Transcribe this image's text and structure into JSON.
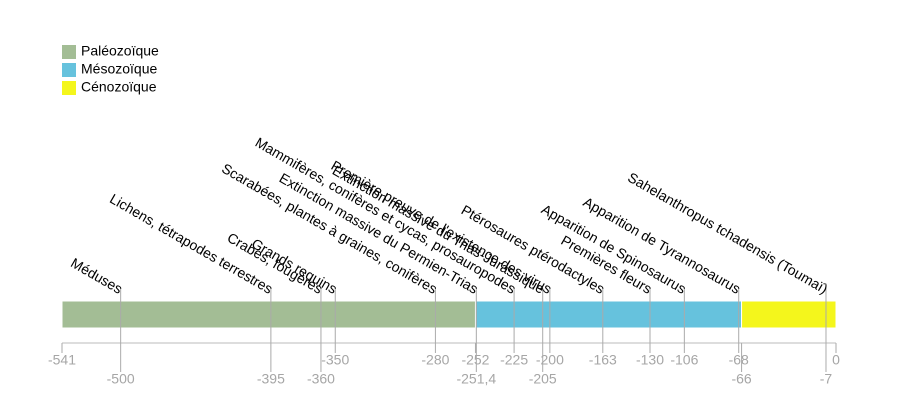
{
  "chart_data": {
    "type": "timeline",
    "xlim": [
      -541,
      0
    ],
    "eras": [
      {
        "name": "Paléozoïque",
        "color": "#a3bd95",
        "start": -541,
        "end": -252
      },
      {
        "name": "Mésozoïque",
        "color": "#66c2dd",
        "start": -252,
        "end": -66
      },
      {
        "name": "Cénozoïque",
        "color": "#f4f61c",
        "start": -66,
        "end": 0
      }
    ],
    "events": [
      {
        "label": "Méduses",
        "value": -500
      },
      {
        "label": "Lichens, tétrapodes terrestres",
        "value": -395
      },
      {
        "label": "Crabes, fougères",
        "value": -360
      },
      {
        "label": "Grands requins",
        "value": -350
      },
      {
        "label": "Scarabées, plantes à graines, conifères",
        "value": -280
      },
      {
        "label": "Extinction massive du Permien-Trias",
        "value": -251.4
      },
      {
        "label": "Mammifères, conifères et cycas, prosauropodes",
        "value": -225
      },
      {
        "label": "Extinction massive du Trias-Jurassique",
        "value": -205
      },
      {
        "label": "Première preuve de l'existence des virus",
        "value": -200
      },
      {
        "label": "Ptérosaures ptérodactyles",
        "value": -163
      },
      {
        "label": "Premières fleurs",
        "value": -130
      },
      {
        "label": "Apparition de Spinosaurus",
        "value": -106
      },
      {
        "label": "Apparition de Tyrannosaurus",
        "value": -68
      },
      {
        "label": "Sahelanthropus tchadensis (Toumaï)",
        "value": -7
      }
    ],
    "xticks": [
      -541,
      -350,
      -280,
      -252,
      -225,
      -200,
      -163,
      -130,
      -106,
      -68,
      0
    ],
    "xticks_lower": [
      -500,
      -395,
      -360,
      {
        "value": -251.4,
        "label": "-251,4"
      },
      -205,
      -66,
      -7
    ]
  }
}
